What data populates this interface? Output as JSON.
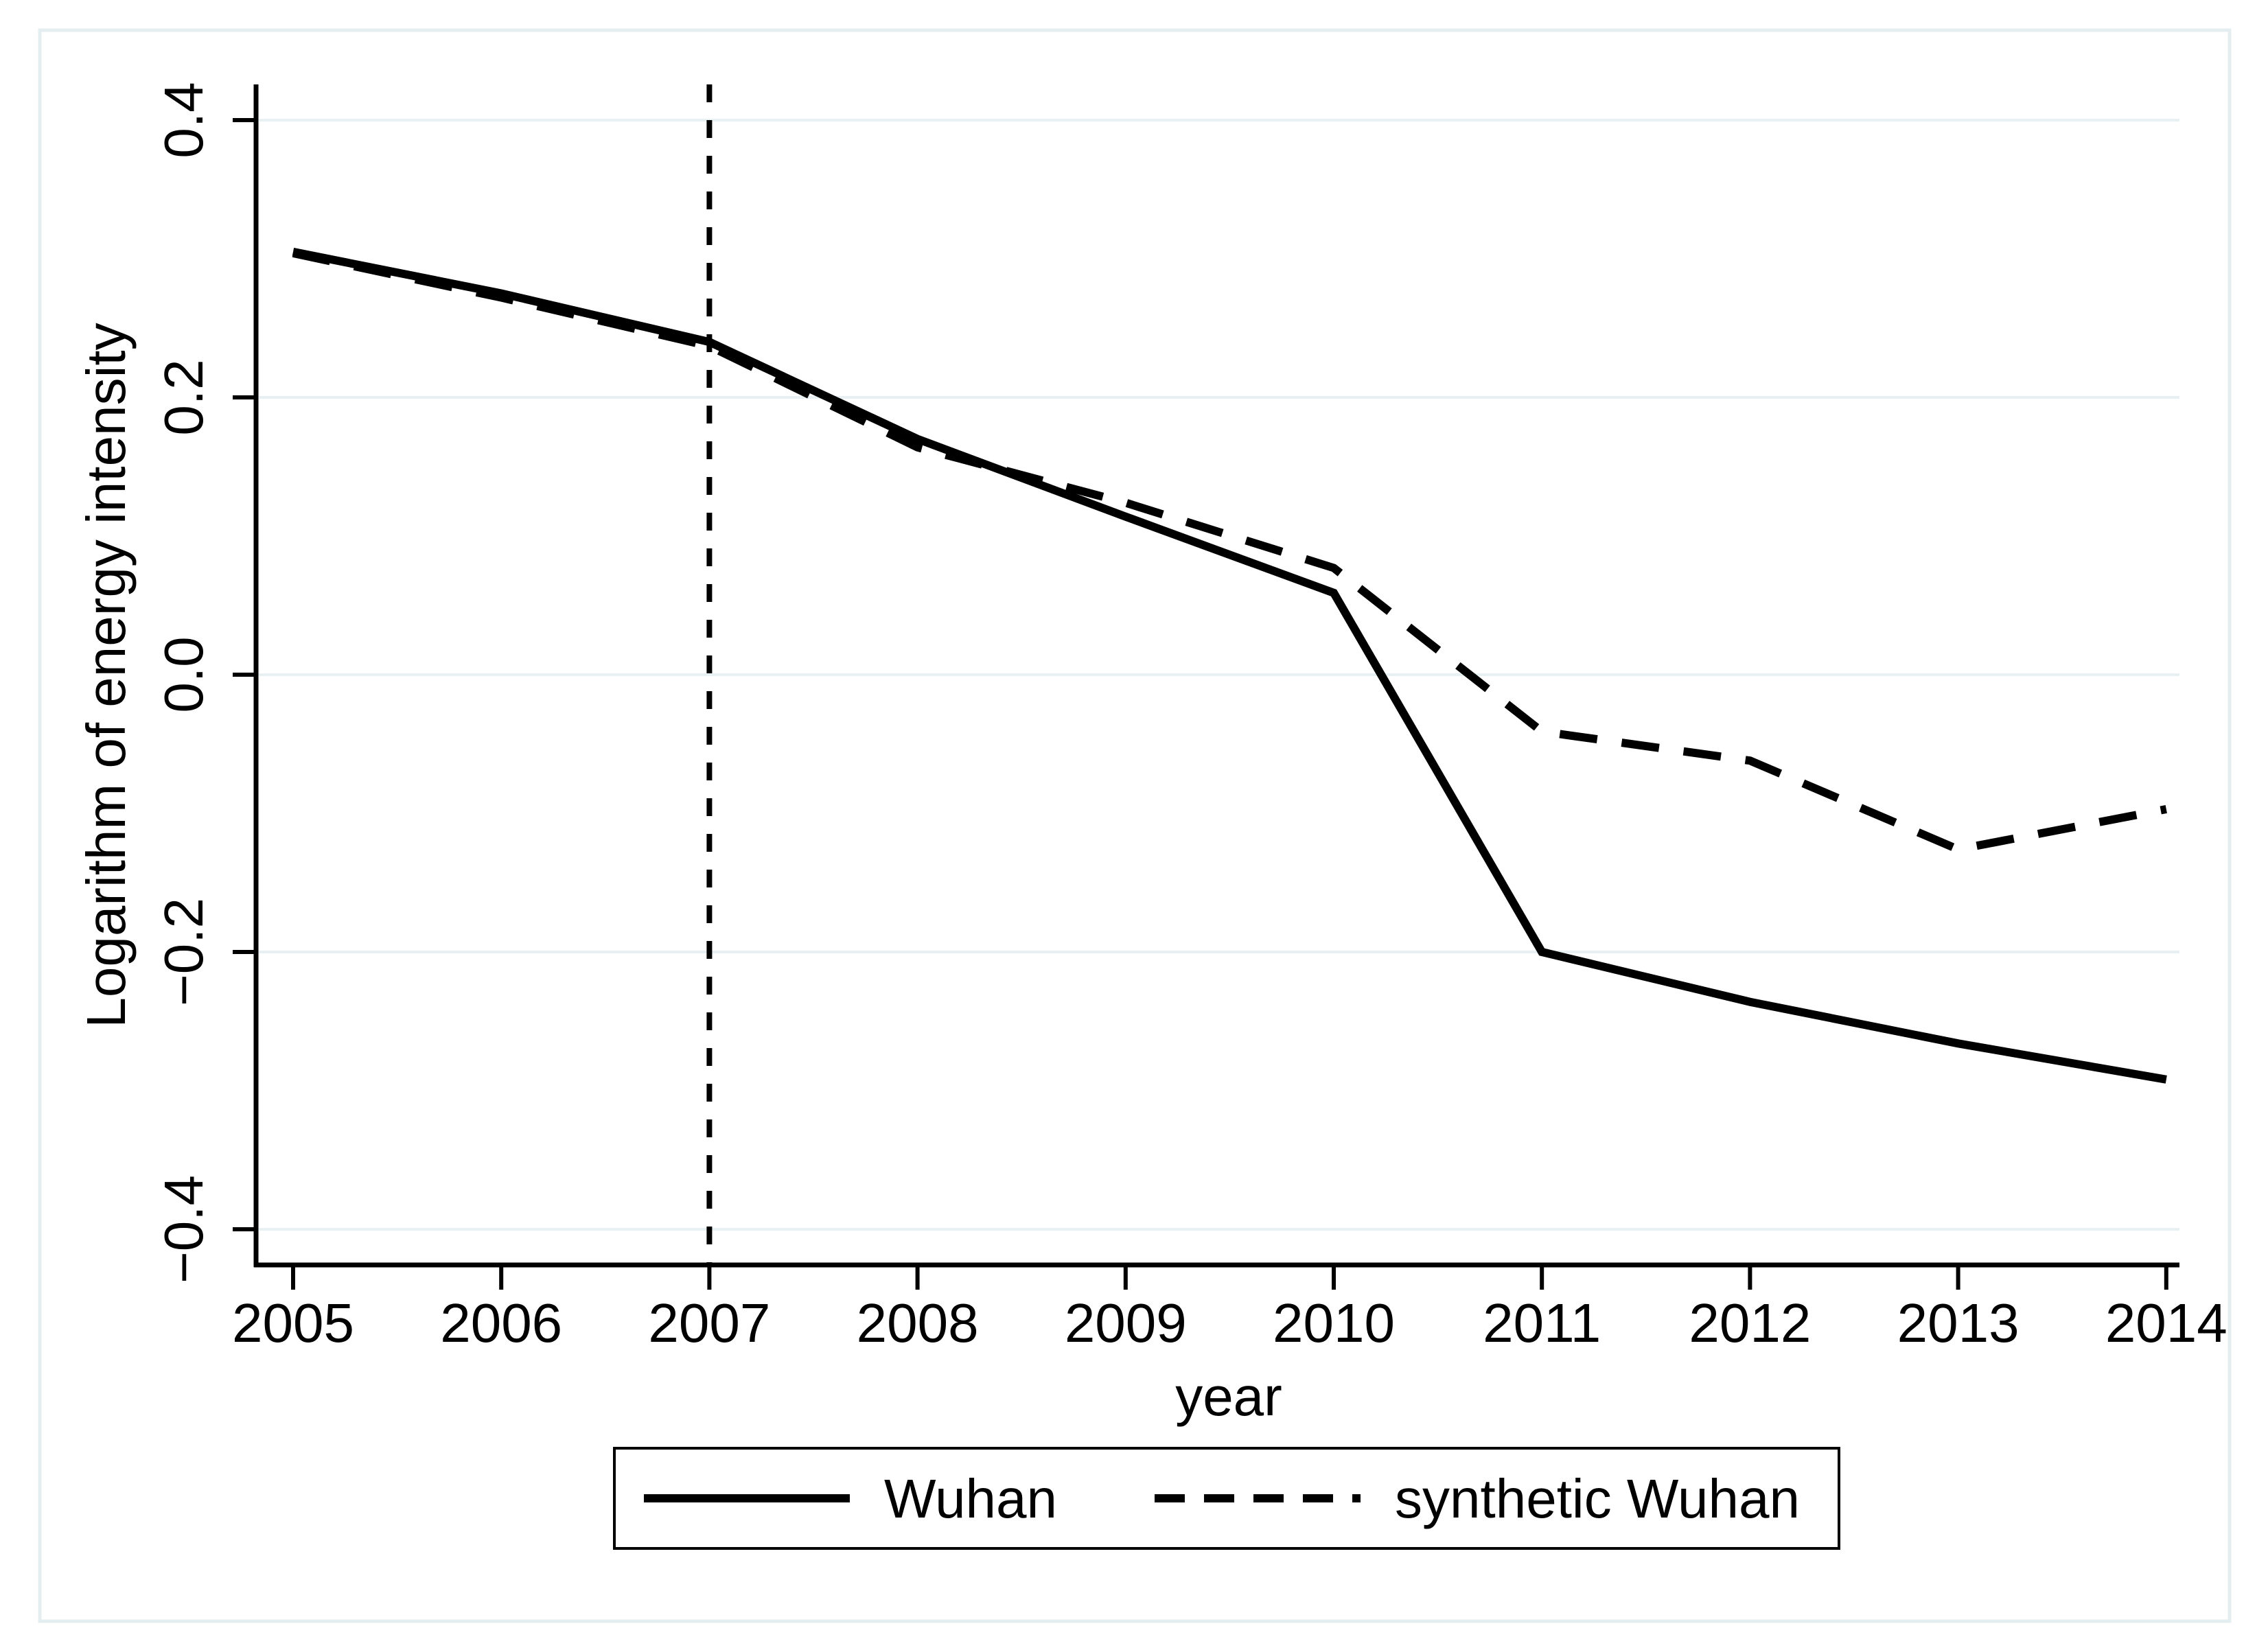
{
  "figure": {
    "background": "#ffffff",
    "border_color": "#e4edef",
    "grid_color": "#e7f0f2",
    "line_color": "#000000"
  },
  "chart_data": {
    "type": "line",
    "title": "",
    "xlabel": "year",
    "ylabel": "Logarithm of energy intensity",
    "x": [
      2005,
      2006,
      2007,
      2008,
      2009,
      2010,
      2011,
      2012,
      2013,
      2014
    ],
    "series": [
      {
        "name": "synthetic Wuhan",
        "style": "dashed",
        "values": [
          0.304,
          0.272,
          0.237,
          0.164,
          0.124,
          0.077,
          -0.041,
          -0.062,
          -0.126,
          -0.097
        ]
      },
      {
        "name": "Wuhan",
        "style": "solid",
        "values": [
          0.305,
          0.275,
          0.24,
          0.17,
          0.114,
          0.059,
          -0.2,
          -0.236,
          -0.266,
          -0.292
        ]
      }
    ],
    "x_tick_labels": [
      "2005",
      "2006",
      "2007",
      "2008",
      "2009",
      "2010",
      "2011",
      "2012",
      "2013",
      "2014"
    ],
    "y_tick_labels": [
      "0.4",
      "0.2",
      "0.0",
      "−0.2",
      "−0.4"
    ],
    "y_tick_values": [
      0.4,
      0.2,
      0.0,
      -0.2,
      -0.4
    ],
    "ylim": [
      -0.46,
      0.44
    ],
    "xlim": [
      2004.82,
      2014.06
    ],
    "reference_line_x": 2007,
    "grid": true,
    "legend_position": "bottom-center"
  },
  "legend": {
    "items": [
      {
        "label": "Wuhan",
        "line": "solid"
      },
      {
        "label": "synthetic Wuhan",
        "line": "dashed"
      }
    ]
  }
}
